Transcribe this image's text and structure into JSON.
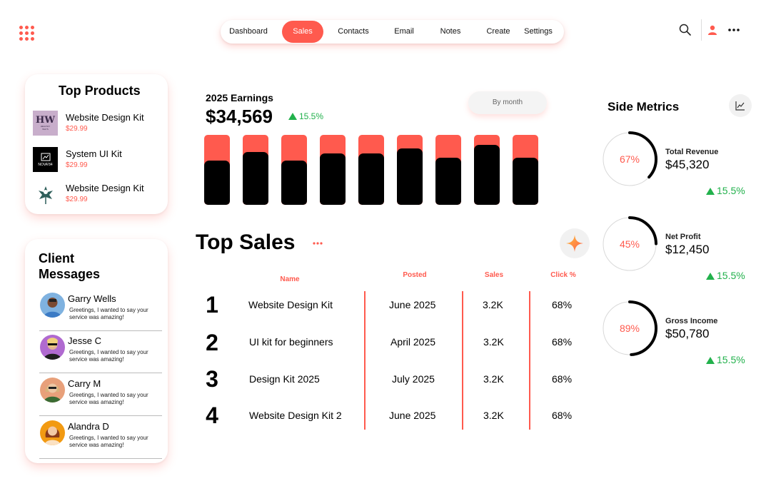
{
  "brand": {
    "accent": "#FF5A4E",
    "positive": "#22B14C",
    "logo_icon": "dots-grid-icon"
  },
  "nav": {
    "tabs": [
      {
        "label": "Dashboard",
        "active": false
      },
      {
        "label": "Sales",
        "active": true
      },
      {
        "label": "Contacts",
        "active": false
      },
      {
        "label": "Email",
        "active": false
      },
      {
        "label": "Notes",
        "active": false
      },
      {
        "label": "Create",
        "active": false
      },
      {
        "label": "Settings",
        "active": false
      }
    ]
  },
  "top_icons": [
    "search-icon",
    "user-icon",
    "more-icon"
  ],
  "top_products": {
    "title": "Top Products",
    "items": [
      {
        "name": "Website Design Kit",
        "price": "$29.99",
        "logo_text": "HW",
        "logo_sub": "HEALTHY WAYS"
      },
      {
        "name": "System UI Kit",
        "price": "$29.99",
        "logo_text": "NOVA'84"
      },
      {
        "name": "Website Design Kit",
        "price": "$29.99"
      }
    ]
  },
  "client_messages": {
    "title_line1": "Client",
    "title_line2": "Messages",
    "items": [
      {
        "name": "Garry Wells",
        "text": "Greetings, I wanted to say your service was amazing!"
      },
      {
        "name": "Jesse C",
        "text": "Greetings, I wanted to say your service was amazing!"
      },
      {
        "name": "Carry M",
        "text": "Greetings, I wanted to say your service was amazing!"
      },
      {
        "name": "Alandra D",
        "text": "Greetings, I wanted to say your service was amazing!"
      }
    ]
  },
  "earnings": {
    "title": "2025 Earnings",
    "value": "$34,569",
    "change": "15.5%",
    "period_button": "By month"
  },
  "chart_data": {
    "type": "bar",
    "title": "2025 Earnings",
    "series": [
      {
        "values": [
          0.63,
          0.75,
          0.63,
          0.73,
          0.73,
          0.81,
          0.67,
          0.86,
          0.67
        ]
      }
    ],
    "ylim": [
      0,
      1
    ],
    "grid": false
  },
  "top_sales": {
    "title": "Top Sales",
    "headers": {
      "name": "Name",
      "posted": "Posted",
      "sales": "Sales",
      "click": "Click %"
    },
    "rows": [
      {
        "rank": "1",
        "name": "Website Design Kit",
        "posted": "June 2025",
        "sales": "3.2K",
        "click": "68%"
      },
      {
        "rank": "2",
        "name": "UI kit for beginners",
        "posted": "April 2025",
        "sales": "3.2K",
        "click": "68%"
      },
      {
        "rank": "3",
        "name": "Design Kit 2025",
        "posted": "July 2025",
        "sales": "3.2K",
        "click": "68%"
      },
      {
        "rank": "4",
        "name": "Website Design Kit 2",
        "posted": "June 2025",
        "sales": "3.2K",
        "click": "68%"
      }
    ]
  },
  "side_metrics": {
    "title": "Side Metrics",
    "items": [
      {
        "pct": "67%",
        "fraction": 0.67,
        "label": "Total Revenue",
        "value": "$45,320",
        "change": "15.5%"
      },
      {
        "pct": "45%",
        "fraction": 0.45,
        "label": "Net Profit",
        "value": "$12,450",
        "change": "15.5%"
      },
      {
        "pct": "89%",
        "fraction": 0.89,
        "label": "Gross Income",
        "value": "$50,780",
        "change": "15.5%"
      }
    ]
  }
}
